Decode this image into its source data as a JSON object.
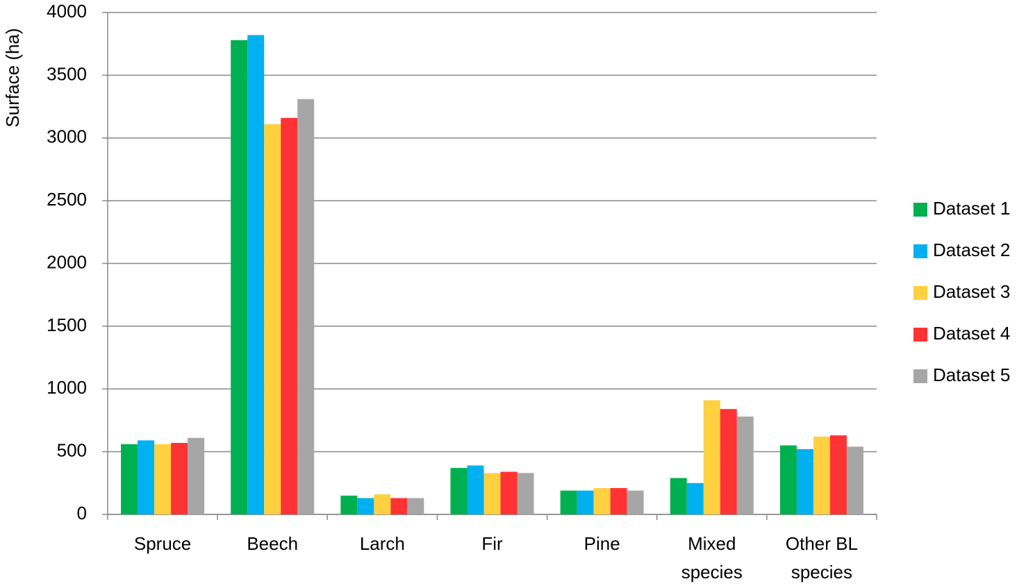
{
  "chart_data": {
    "type": "bar",
    "y_label": "Surface (ha)",
    "categories": [
      "Spruce",
      "Beech",
      "Larch",
      "Fir",
      "Pine",
      "Mixed species",
      "Other BL species"
    ],
    "series": [
      {
        "name": "Dataset 1",
        "color": "#00b050",
        "values": [
          560,
          3780,
          150,
          370,
          190,
          290,
          550
        ]
      },
      {
        "name": "Dataset 2",
        "color": "#00b0f0",
        "values": [
          590,
          3820,
          130,
          390,
          190,
          250,
          520
        ]
      },
      {
        "name": "Dataset 3",
        "color": "#ffd040",
        "values": [
          560,
          3110,
          160,
          330,
          210,
          910,
          620
        ]
      },
      {
        "name": "Dataset 4",
        "color": "#ff3333",
        "values": [
          570,
          3160,
          130,
          340,
          210,
          840,
          630
        ]
      },
      {
        "name": "Dataset 5",
        "color": "#a6a6a6",
        "values": [
          610,
          3310,
          130,
          330,
          190,
          780,
          540
        ]
      }
    ],
    "ylim": [
      0,
      4000
    ],
    "yticks": [
      0,
      500,
      1000,
      1500,
      2000,
      2500,
      3000,
      3500,
      4000
    ],
    "grid": true,
    "legend": "right"
  }
}
